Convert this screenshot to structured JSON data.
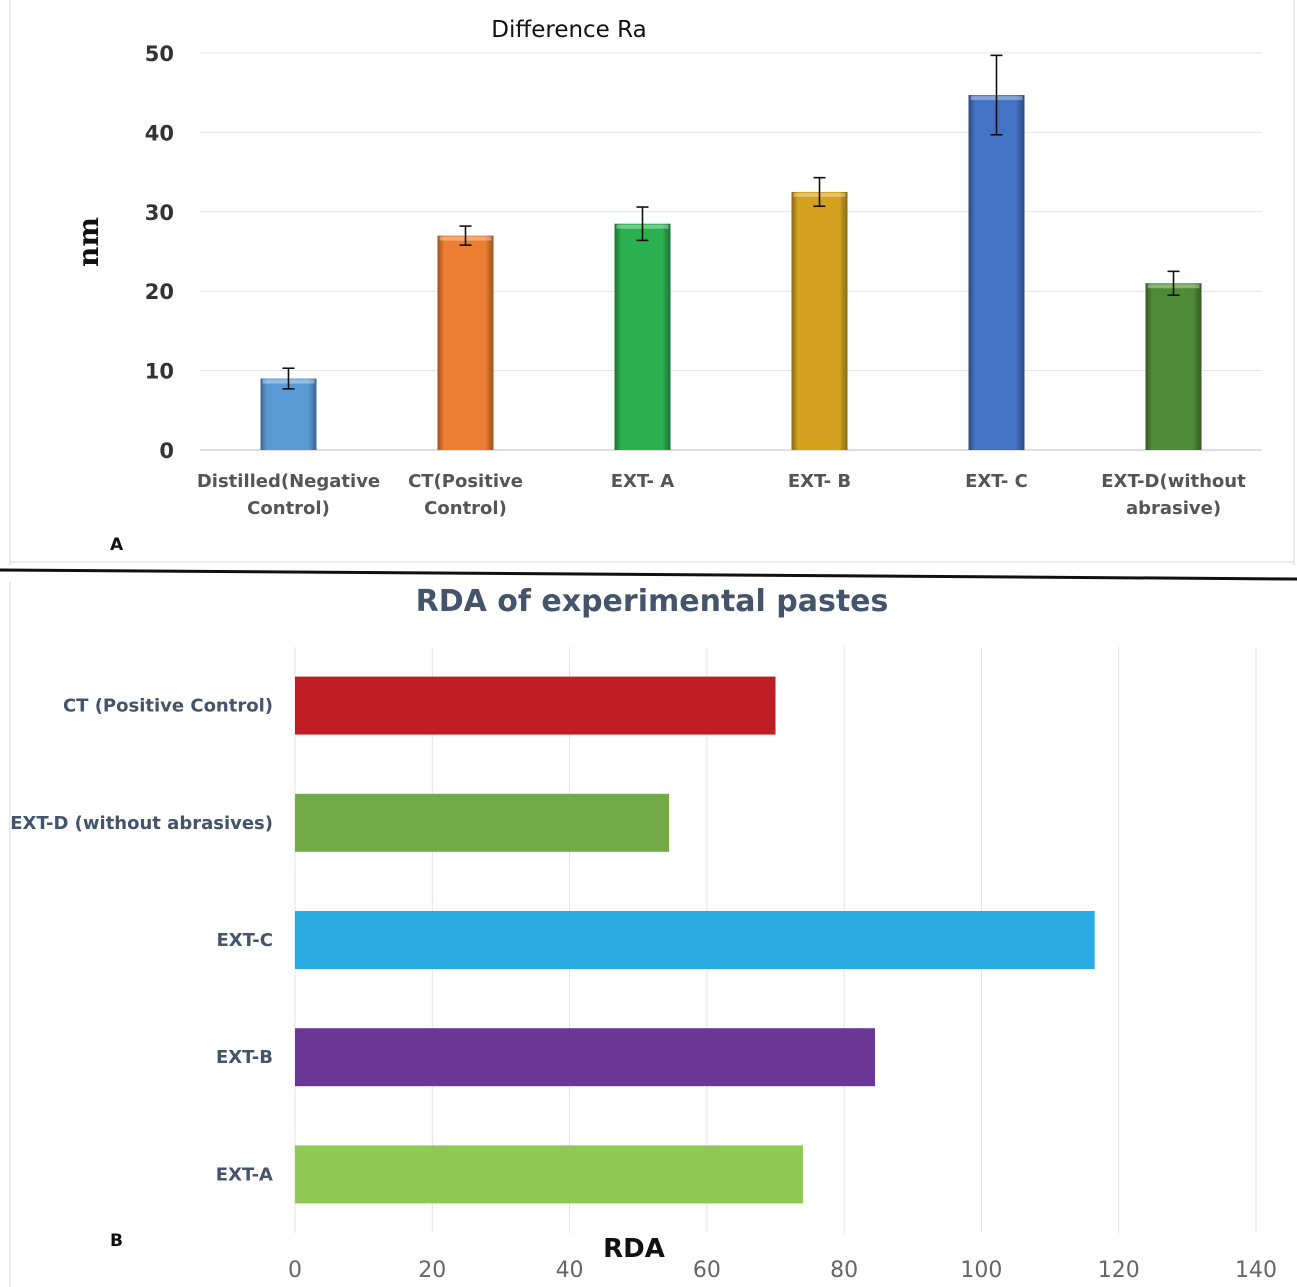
{
  "panels": {
    "a_letter": "A",
    "b_letter": "B"
  },
  "chart_data": [
    {
      "type": "bar",
      "title": "Difference Ra",
      "xlabel": "",
      "ylabel": "nm",
      "ylim": [
        0,
        50
      ],
      "yticks": [
        0,
        10,
        20,
        30,
        40,
        50
      ],
      "grid": true,
      "categories": [
        [
          "Distilled(Negative",
          "Control)"
        ],
        [
          "CT(Positive",
          "Control)"
        ],
        [
          "EXT- A"
        ],
        [
          "EXT- B"
        ],
        [
          "EXT- C"
        ],
        [
          "EXT-D(without",
          "abrasive)"
        ]
      ],
      "values": [
        9,
        27,
        28.5,
        32.5,
        44.7,
        21
      ],
      "errors": [
        1.3,
        1.2,
        2.1,
        1.8,
        5,
        1.5
      ],
      "colors": [
        "#5b9bd5",
        "#ed7d31",
        "#2bb04f",
        "#d4a21f",
        "#4472c4",
        "#4f8a36"
      ]
    },
    {
      "type": "bar",
      "orientation": "horizontal",
      "title": "RDA of experimental pastes",
      "xlabel": "RDA",
      "ylabel": "",
      "xlim": [
        0,
        140
      ],
      "xticks": [
        0,
        20,
        40,
        60,
        80,
        100,
        120,
        140
      ],
      "grid": true,
      "categories": [
        "CT (Positive Control)",
        "EXT-D (without abrasives)",
        "EXT-C",
        "EXT-B",
        "EXT-A"
      ],
      "values": [
        70,
        54.5,
        116.5,
        84.5,
        74
      ],
      "colors": [
        "#be1e24",
        "#72ab46",
        "#29abe2",
        "#6b3795",
        "#8fc954"
      ]
    }
  ]
}
